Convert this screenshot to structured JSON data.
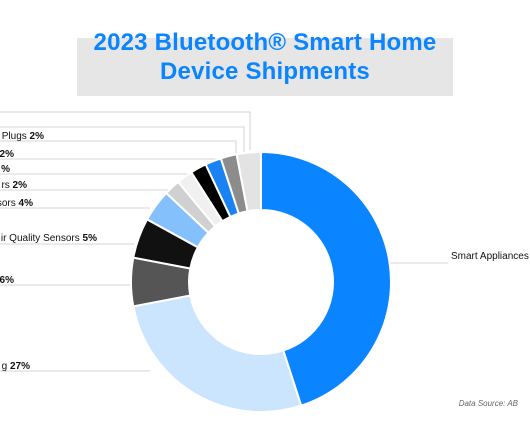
{
  "title_line1": "2023 Bluetooth® Smart Home",
  "title_line2": "Device Shipments",
  "source": "Data Source: AB",
  "colors": {
    "title": "#0a84ff",
    "title_bg": "#e6e6e6"
  },
  "chart_data": {
    "type": "pie",
    "style": "donut",
    "unit": "%",
    "title": "2023 Bluetooth® Smart Home Device Shipments",
    "slices": [
      {
        "label": "Smart Appliances",
        "value_text": "",
        "value": 45,
        "color": "#0a84ff"
      },
      {
        "label": "g",
        "value_text": "27%",
        "value": 27,
        "color": "#cce5fe"
      },
      {
        "label": "",
        "value_text": "6%",
        "value": 6,
        "color": "#555555"
      },
      {
        "label": "ir Quality Sensors",
        "value_text": "5%",
        "value": 5,
        "color": "#111111"
      },
      {
        "label": "sors",
        "value_text": "4%",
        "value": 4,
        "color": "#84c0fc"
      },
      {
        "label": "rs",
        "value_text": "2%",
        "value": 2,
        "color": "#d0d0d0"
      },
      {
        "label": "",
        "value_text": "%",
        "value": 2,
        "color": "#f0f0f0"
      },
      {
        "label": "",
        "value_text": "2%",
        "value": 2,
        "color": "#000000"
      },
      {
        "label": "Plugs",
        "value_text": "2%",
        "value": 2,
        "color": "#1b82f4"
      },
      {
        "label": "",
        "value_text": "",
        "value": 2,
        "color": "#8c8c8c"
      },
      {
        "label": "",
        "value_text": "",
        "value": 3,
        "color": "#e3e3e3"
      }
    ]
  }
}
